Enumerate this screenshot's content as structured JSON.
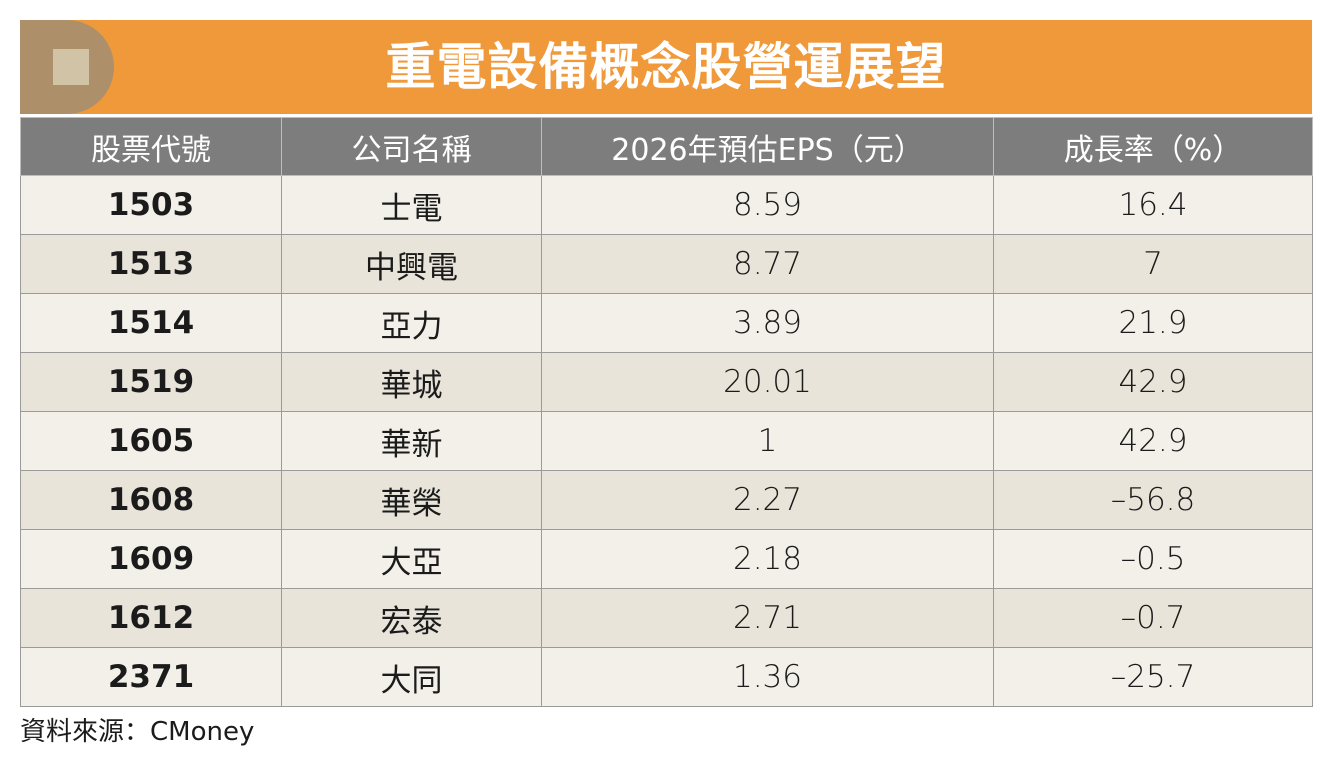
{
  "header": {
    "title": "重電設備概念股營運展望"
  },
  "table": {
    "columns": [
      "股票代號",
      "公司名稱",
      "2026年預估EPS（元）",
      "成長率（%）"
    ],
    "rows": [
      [
        "1503",
        "士電",
        "8.59",
        "16.4"
      ],
      [
        "1513",
        "中興電",
        "8.77",
        "7"
      ],
      [
        "1514",
        "亞力",
        "3.89",
        "21.9"
      ],
      [
        "1519",
        "華城",
        "20.01",
        "42.9"
      ],
      [
        "1605",
        "華新",
        "1",
        "42.9"
      ],
      [
        "1608",
        "華榮",
        "2.27",
        "–56.8"
      ],
      [
        "1609",
        "大亞",
        "2.18",
        "–0.5"
      ],
      [
        "1612",
        "宏泰",
        "2.71",
        "–0.7"
      ],
      [
        "2371",
        "大同",
        "1.36",
        "–25.7"
      ]
    ]
  },
  "footer": {
    "source": "資料來源：CMoney"
  }
}
